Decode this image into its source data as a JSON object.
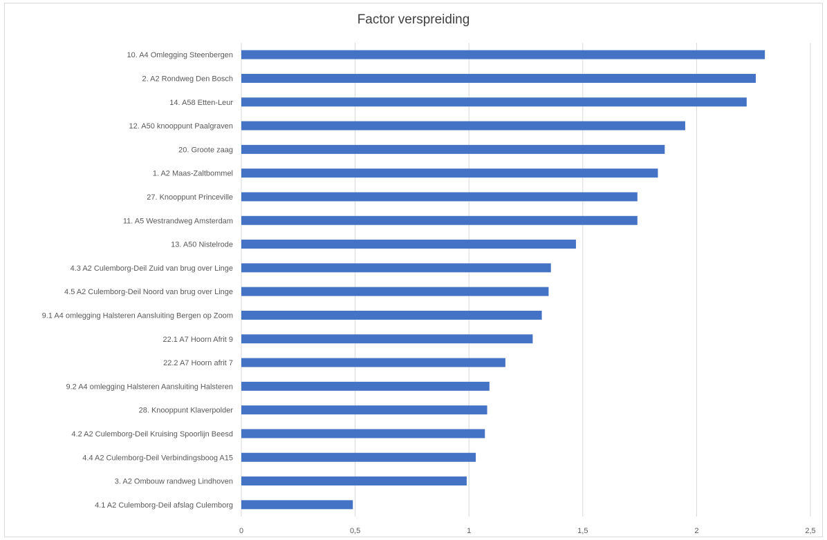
{
  "chart_data": {
    "type": "bar",
    "orientation": "horizontal",
    "title": "Factor verspreiding",
    "xlim": [
      0,
      2.5
    ],
    "x_ticks": [
      0,
      0.5,
      1,
      1.5,
      2,
      2.5
    ],
    "x_tick_labels": [
      "0",
      "0,5",
      "1",
      "1,5",
      "2",
      "2,5"
    ],
    "grid": true,
    "bar_color": "#4472c4",
    "categories": [
      "10. A4 Omlegging Steenbergen",
      "2. A2 Rondweg Den Bosch",
      "14. A58 Etten-Leur",
      "12. A50 knooppunt Paalgraven",
      "20. Groote zaag",
      "1. A2 Maas-Zaltbommel",
      "27. Knooppunt Princeville",
      "11. A5 Westrandweg Amsterdam",
      "13. A50 Nistelrode",
      "4.3 A2 Culemborg-Deil Zuid van brug over Linge",
      "4.5 A2 Culemborg-Deil Noord van brug over Linge",
      "9.1 A4 omlegging Halsteren Aansluiting Bergen op Zoom",
      "22.1 A7 Hoorn Afrit 9",
      "22.2 A7 Hoorn afrit 7",
      "9.2 A4 omlegging Halsteren Aansluiting Halsteren",
      "28. Knooppunt Klaverpolder",
      "4.2 A2 Culemborg-Deil Kruising Spoorlijn Beesd",
      "4.4 A2 Culemborg-Deil Verbindingsboog A15",
      "3. A2 Ombouw randweg Lindhoven",
      "4.1 A2 Culemborg-Deil afslag Culemborg"
    ],
    "values": [
      2.3,
      2.26,
      2.22,
      1.95,
      1.86,
      1.83,
      1.74,
      1.74,
      1.47,
      1.36,
      1.35,
      1.32,
      1.28,
      1.16,
      1.09,
      1.08,
      1.07,
      1.03,
      0.99,
      0.49
    ]
  }
}
